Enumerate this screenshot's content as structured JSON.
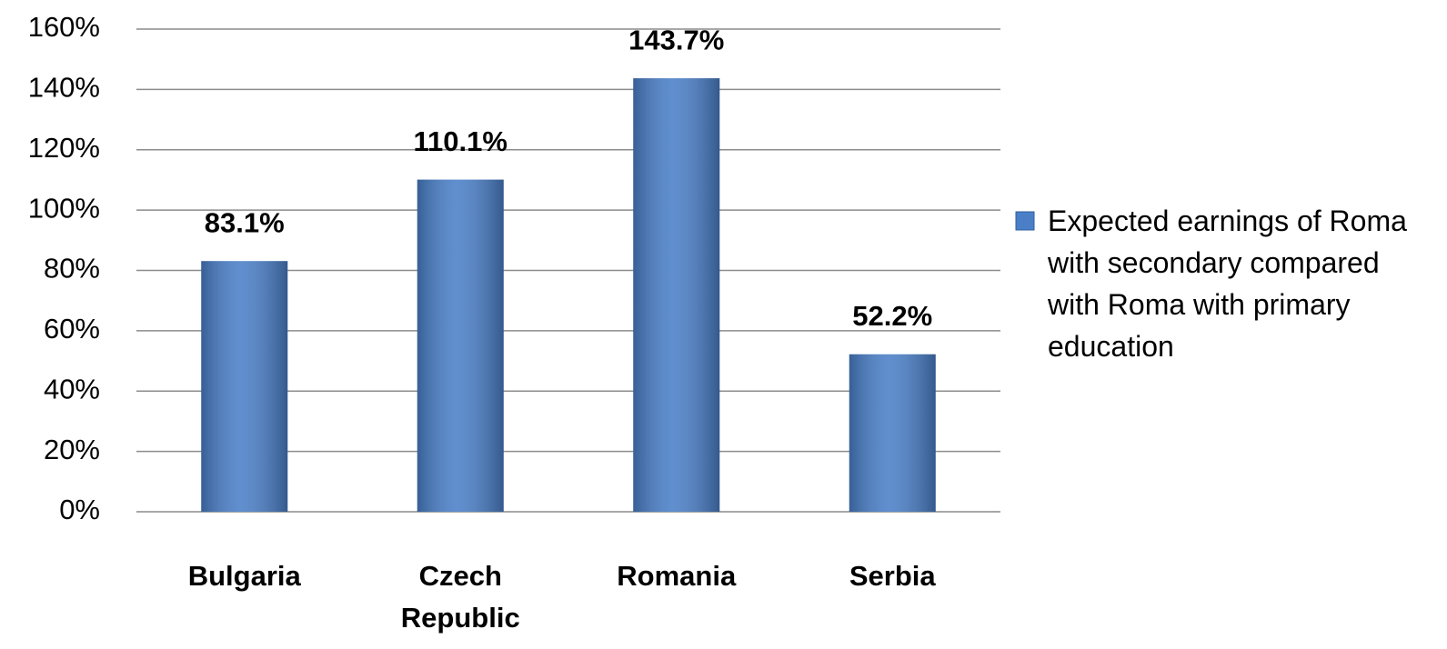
{
  "chart_data": {
    "type": "bar",
    "categories": [
      "Bulgaria",
      "Czech Republic",
      "Romania",
      "Serbia"
    ],
    "series": [
      {
        "name": "Expected earnings of Roma with secondary compared with Roma with primary education",
        "color": "#4a7fc8",
        "values": [
          83.1,
          110.1,
          143.7,
          52.2
        ],
        "value_labels": [
          "83.1%",
          "110.1%",
          "143.7%",
          "52.2%"
        ]
      }
    ],
    "ylim": [
      0,
      160
    ],
    "yticks": [
      {
        "value": 0,
        "label": "0%"
      },
      {
        "value": 20,
        "label": "20%"
      },
      {
        "value": 40,
        "label": "40%"
      },
      {
        "value": 60,
        "label": "60%"
      },
      {
        "value": 80,
        "label": "80%"
      },
      {
        "value": 100,
        "label": "100%"
      },
      {
        "value": 120,
        "label": "120%"
      },
      {
        "value": 140,
        "label": "140%"
      },
      {
        "value": 160,
        "label": "160%"
      }
    ],
    "grid": true,
    "legend": "right"
  }
}
